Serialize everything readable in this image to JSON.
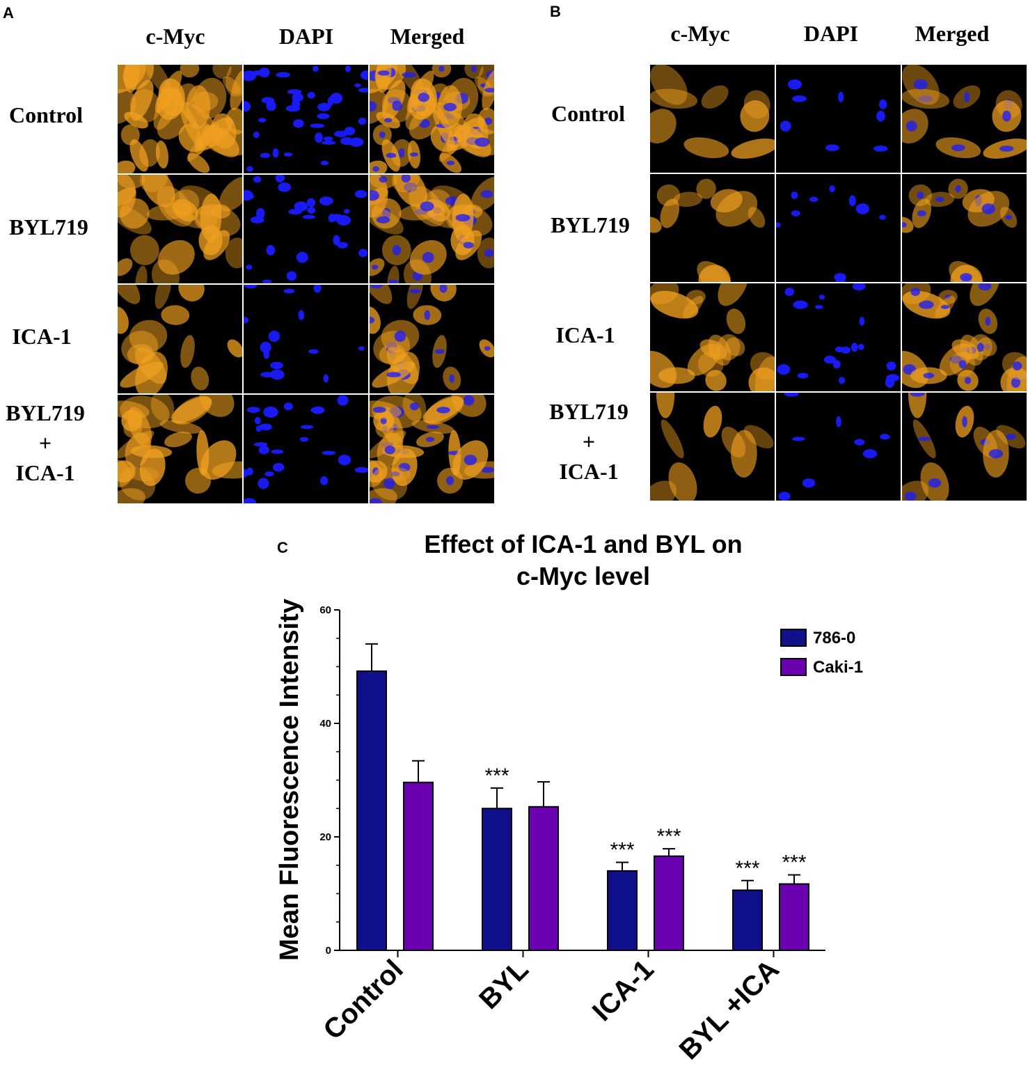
{
  "panel_a": {
    "letter": "A",
    "columns": [
      "c-Myc",
      "DAPI",
      "Merged"
    ],
    "rows": [
      "Control",
      "BYL719",
      "ICA-1",
      [
        "BYL719",
        "+",
        "ICA-1"
      ]
    ]
  },
  "panel_b": {
    "letter": "B",
    "columns": [
      "c-Myc",
      "DAPI",
      "Merged"
    ],
    "rows": [
      "Control",
      "BYL719",
      "ICA-1",
      [
        "BYL719",
        "+",
        "ICA-1"
      ]
    ]
  },
  "colors": {
    "cmyc": "#f0a020",
    "dapi": "#1a1aff",
    "bar_786": "#10108a",
    "bar_caki": "#6a00b0",
    "background_cells": "#000000"
  },
  "chart_data": {
    "panel_letter": "C",
    "type": "bar",
    "title": "Effect of ICA-1 and BYL on c-Myc level",
    "title_lines": [
      "Effect of ICA-1 and BYL on",
      "c-Myc level"
    ],
    "ylabel": "Mean Fluorescence Intensity",
    "xlabel": "",
    "categories": [
      "Control",
      "BYL",
      "ICA-1",
      "BYL +ICA"
    ],
    "ylim": [
      0,
      60
    ],
    "yticks": [
      0,
      20,
      40,
      60
    ],
    "legend_position": "top-right",
    "grid": false,
    "series": [
      {
        "name": "786-0",
        "color": "#10108a",
        "values": [
          49.2,
          25.0,
          14.0,
          10.6
        ],
        "errors": [
          4.8,
          3.6,
          1.5,
          1.7
        ],
        "annotations": [
          "",
          "***",
          "***",
          "***"
        ]
      },
      {
        "name": "Caki-1",
        "color": "#6a00b0",
        "values": [
          29.6,
          25.3,
          16.6,
          11.7
        ],
        "errors": [
          3.8,
          4.4,
          1.3,
          1.6
        ],
        "annotations": [
          "",
          "",
          "***",
          "***"
        ]
      }
    ]
  }
}
